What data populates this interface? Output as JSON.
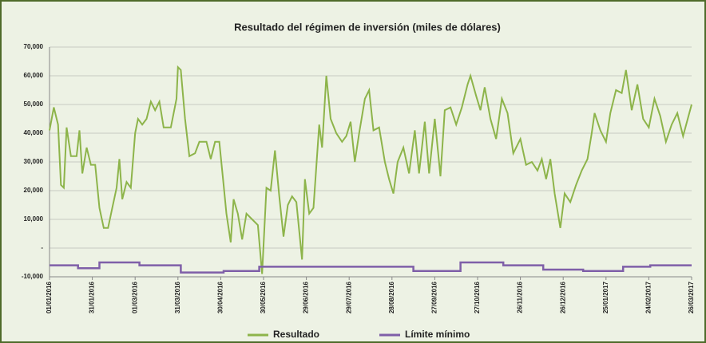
{
  "chart_data": {
    "type": "line",
    "title": "Resultado del régimen de inversión (miles de dólares)",
    "xlim": [
      "01/01/2016",
      "26/03/2017"
    ],
    "xticks": [
      "01/01/2016",
      "31/01/2016",
      "01/03/2016",
      "31/03/2016",
      "30/04/2016",
      "30/05/2016",
      "29/06/2016",
      "29/07/2016",
      "28/08/2016",
      "27/09/2016",
      "27/10/2016",
      "26/11/2016",
      "26/12/2016",
      "25/01/2017",
      "24/02/2017",
      "26/03/2017"
    ],
    "ylim": [
      -10000,
      70000
    ],
    "yticks": [
      {
        "value": -10000,
        "label": "-10,000"
      },
      {
        "value": 0,
        "label": "-"
      },
      {
        "value": 10000,
        "label": "10,000"
      },
      {
        "value": 20000,
        "label": "20,000"
      },
      {
        "value": 30000,
        "label": "30,000"
      },
      {
        "value": 40000,
        "label": "40,000"
      },
      {
        "value": 50000,
        "label": "50,000"
      },
      {
        "value": 60000,
        "label": "60,000"
      },
      {
        "value": 70000,
        "label": "70,000"
      }
    ],
    "grid": true,
    "legend": "bottom",
    "series": [
      {
        "name": "Resultado",
        "color": "#8db44a",
        "x": [
          "01/01/2016",
          "04/01/2016",
          "07/01/2016",
          "09/01/2016",
          "11/01/2016",
          "13/01/2016",
          "16/01/2016",
          "20/01/2016",
          "22/01/2016",
          "24/01/2016",
          "27/01/2016",
          "30/01/2016",
          "02/02/2016",
          "05/02/2016",
          "08/02/2016",
          "11/02/2016",
          "14/02/2016",
          "17/02/2016",
          "19/02/2016",
          "21/02/2016",
          "24/02/2016",
          "27/02/2016",
          "01/03/2016",
          "03/03/2016",
          "06/03/2016",
          "09/03/2016",
          "12/03/2016",
          "15/03/2016",
          "18/03/2016",
          "21/03/2016",
          "26/03/2016",
          "30/03/2016",
          "31/03/2016",
          "02/04/2016",
          "05/04/2016",
          "08/04/2016",
          "12/04/2016",
          "15/04/2016",
          "20/04/2016",
          "23/04/2016",
          "26/04/2016",
          "29/04/2016",
          "02/05/2016",
          "04/05/2016",
          "07/05/2016",
          "09/05/2016",
          "12/05/2016",
          "15/05/2016",
          "18/05/2016",
          "22/05/2016",
          "26/05/2016",
          "29/05/2016",
          "01/06/2016",
          "04/06/2016",
          "07/06/2016",
          "10/06/2016",
          "13/06/2016",
          "16/06/2016",
          "19/06/2016",
          "22/06/2016",
          "26/06/2016",
          "28/06/2016",
          "01/07/2016",
          "04/07/2016",
          "08/07/2016",
          "10/07/2016",
          "13/07/2016",
          "16/07/2016",
          "20/07/2016",
          "24/07/2016",
          "27/07/2016",
          "30/07/2016",
          "02/08/2016",
          "05/08/2016",
          "09/08/2016",
          "12/08/2016",
          "15/08/2016",
          "19/08/2016",
          "23/08/2016",
          "26/08/2016",
          "29/08/2016",
          "01/09/2016",
          "05/09/2016",
          "09/09/2016",
          "13/09/2016",
          "16/09/2016",
          "20/09/2016",
          "23/09/2016",
          "27/09/2016",
          "01/10/2016",
          "04/10/2016",
          "08/10/2016",
          "12/10/2016",
          "16/10/2016",
          "20/10/2016",
          "22/10/2016",
          "26/10/2016",
          "29/10/2016",
          "01/11/2016",
          "05/11/2016",
          "09/11/2016",
          "13/11/2016",
          "17/11/2016",
          "21/11/2016",
          "26/11/2016",
          "30/11/2016",
          "04/12/2016",
          "08/12/2016",
          "11/12/2016",
          "14/12/2016",
          "17/12/2016",
          "20/12/2016",
          "24/12/2016",
          "27/12/2016",
          "31/12/2016",
          "04/01/2017",
          "08/01/2017",
          "12/01/2017",
          "15/01/2017",
          "17/01/2017",
          "21/01/2017",
          "25/01/2017",
          "28/01/2017",
          "01/02/2017",
          "05/02/2017",
          "08/02/2017",
          "12/02/2017",
          "16/02/2017",
          "20/02/2017",
          "24/02/2017",
          "28/02/2017",
          "04/03/2017",
          "08/03/2017",
          "12/03/2017",
          "16/03/2017",
          "20/03/2017",
          "26/03/2017"
        ],
        "values": [
          41000,
          49000,
          43000,
          22000,
          21000,
          42000,
          32000,
          32000,
          41000,
          26000,
          35000,
          29000,
          29000,
          14000,
          7000,
          7000,
          14000,
          21000,
          31000,
          17000,
          23000,
          21000,
          40000,
          45000,
          43000,
          45000,
          51000,
          48000,
          51000,
          42000,
          42000,
          52000,
          63000,
          62000,
          45000,
          32000,
          33000,
          37000,
          37000,
          31000,
          37000,
          37000,
          22000,
          12000,
          2000,
          17000,
          12000,
          3000,
          12000,
          10000,
          8000,
          -9000,
          21000,
          20000,
          34000,
          18000,
          4000,
          15000,
          18000,
          16000,
          -4000,
          24000,
          12000,
          14000,
          43000,
          35000,
          60000,
          45000,
          40000,
          37000,
          39000,
          44000,
          30000,
          40000,
          52000,
          55000,
          41000,
          42000,
          30000,
          24000,
          19000,
          30000,
          35000,
          26000,
          41000,
          26000,
          44000,
          26000,
          45000,
          25000,
          48000,
          49000,
          43000,
          49000,
          57000,
          60000,
          53000,
          48000,
          56000,
          45000,
          38000,
          52000,
          47000,
          33000,
          38000,
          29000,
          30000,
          27000,
          31000,
          24000,
          31000,
          19000,
          7000,
          19000,
          16000,
          22000,
          27000,
          31000,
          40000,
          47000,
          41000,
          37000,
          47000,
          55000,
          54000,
          62000,
          48000,
          57000,
          45000,
          42000,
          52000,
          46000,
          37000,
          43000,
          47000,
          39000,
          50000
        ]
      },
      {
        "name": "Límite mínimo",
        "color": "#7f5fa8",
        "x": [
          "01/01/2016",
          "21/01/2016",
          "21/01/2016",
          "05/02/2016",
          "05/02/2016",
          "04/03/2016",
          "04/03/2016",
          "02/04/2016",
          "02/04/2016",
          "02/05/2016",
          "02/05/2016",
          "27/05/2016",
          "27/05/2016",
          "12/09/2016",
          "12/09/2016",
          "15/10/2016",
          "15/10/2016",
          "14/11/2016",
          "14/11/2016",
          "12/12/2016",
          "12/12/2016",
          "09/01/2017",
          "09/01/2017",
          "06/02/2017",
          "06/02/2017",
          "25/02/2017",
          "25/02/2017",
          "26/03/2017"
        ],
        "values": [
          -6000,
          -6000,
          -7000,
          -7000,
          -5000,
          -5000,
          -6000,
          -6000,
          -8500,
          -8500,
          -8000,
          -8000,
          -6500,
          -6500,
          -8000,
          -8000,
          -5000,
          -5000,
          -6000,
          -6000,
          -7500,
          -7500,
          -8000,
          -8000,
          -6500,
          -6500,
          -6000,
          -6000
        ]
      }
    ]
  }
}
